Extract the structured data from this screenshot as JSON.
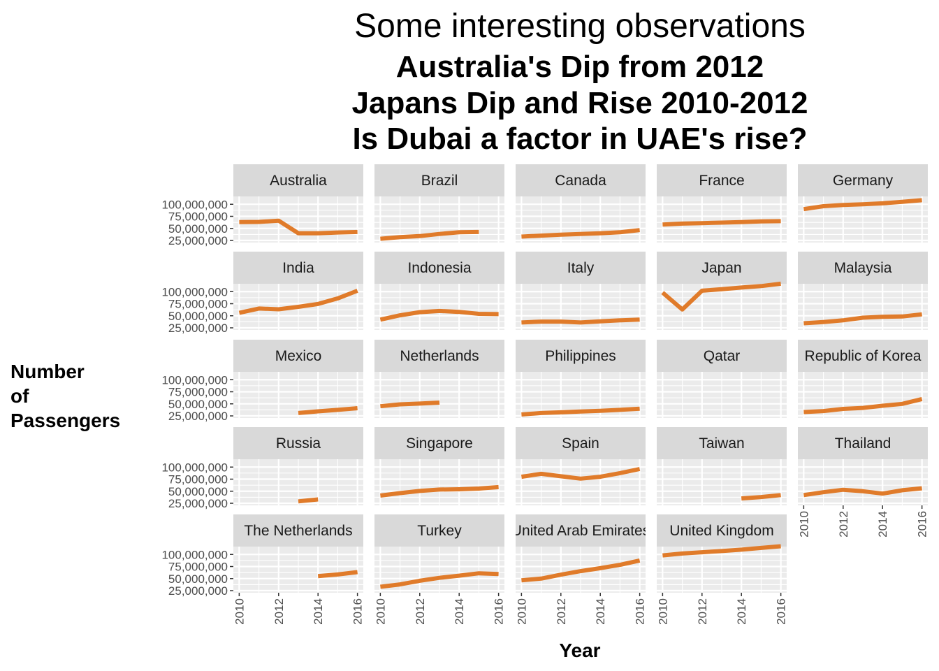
{
  "chart_data": {
    "type": "line",
    "title": "Some interesting observations",
    "subtitle_lines": [
      "Australia's Dip from 2012",
      "Japans Dip and Rise 2010-2012",
      "Is Dubai a factor in UAE's rise?"
    ],
    "xlabel": "Year",
    "ylabel_lines": [
      "Number",
      "of",
      "Passengers"
    ],
    "x_ticks": [
      2010,
      2012,
      2014,
      2016
    ],
    "x_tick_labels": [
      "2010",
      "2012",
      "2014",
      "2016"
    ],
    "xlim": [
      2010,
      2016
    ],
    "y_ticks": [
      25000000,
      50000000,
      75000000,
      100000000
    ],
    "y_tick_labels": [
      "25,000,000",
      "50,000,000",
      "75,000,000",
      "100,000,000"
    ],
    "ylim": [
      25000000,
      112000000
    ],
    "line_color": "#e07b2a",
    "layout": "facet-wrap 5x5",
    "panels": [
      {
        "name": "Australia",
        "x": [
          2010,
          2011,
          2012,
          2013,
          2014,
          2015,
          2016
        ],
        "y": [
          63000000,
          63500000,
          66000000,
          40000000,
          40000000,
          41500000,
          42500000
        ]
      },
      {
        "name": "Brazil",
        "x": [
          2010,
          2011,
          2012,
          2013,
          2014,
          2015
        ],
        "y": [
          28500000,
          32000000,
          34000000,
          38500000,
          42000000,
          42500000
        ]
      },
      {
        "name": "Canada",
        "x": [
          2010,
          2011,
          2012,
          2013,
          2014,
          2015,
          2016
        ],
        "y": [
          33000000,
          35000000,
          37000000,
          38500000,
          40000000,
          42000000,
          46500000
        ]
      },
      {
        "name": "France",
        "x": [
          2010,
          2011,
          2012,
          2013,
          2014,
          2015,
          2016
        ],
        "y": [
          58000000,
          60000000,
          61000000,
          62000000,
          63000000,
          64500000,
          65000000
        ]
      },
      {
        "name": "Germany",
        "x": [
          2010,
          2011,
          2012,
          2013,
          2014,
          2015,
          2016
        ],
        "y": [
          90000000,
          96000000,
          98500000,
          100000000,
          102000000,
          105000000,
          108500000
        ]
      },
      {
        "name": "India",
        "x": [
          2010,
          2011,
          2012,
          2013,
          2014,
          2015,
          2016
        ],
        "y": [
          56000000,
          65000000,
          63500000,
          68500000,
          74500000,
          86000000,
          102000000
        ]
      },
      {
        "name": "Indonesia",
        "x": [
          2010,
          2011,
          2012,
          2013,
          2014,
          2015,
          2016
        ],
        "y": [
          42000000,
          51000000,
          57500000,
          60000000,
          58000000,
          54000000,
          53500000
        ]
      },
      {
        "name": "Italy",
        "x": [
          2010,
          2011,
          2012,
          2013,
          2014,
          2015,
          2016
        ],
        "y": [
          36000000,
          38000000,
          38000000,
          36000000,
          38500000,
          40500000,
          42000000
        ]
      },
      {
        "name": "Japan",
        "x": [
          2010,
          2011,
          2012,
          2013,
          2014,
          2015,
          2016
        ],
        "y": [
          98000000,
          63000000,
          102000000,
          105000000,
          108500000,
          111500000,
          116500000
        ]
      },
      {
        "name": "Malaysia",
        "x": [
          2010,
          2011,
          2012,
          2013,
          2014,
          2015,
          2016
        ],
        "y": [
          34500000,
          37000000,
          40500000,
          46000000,
          48000000,
          48500000,
          53000000
        ]
      },
      {
        "name": "Mexico",
        "x": [
          2013,
          2014,
          2015,
          2016
        ],
        "y": [
          31000000,
          34500000,
          37500000,
          41000000
        ]
      },
      {
        "name": "Netherlands",
        "x": [
          2010,
          2011,
          2012,
          2013
        ],
        "y": [
          45000000,
          49000000,
          50500000,
          52500000
        ]
      },
      {
        "name": "Philippines",
        "x": [
          2010,
          2011,
          2012,
          2013,
          2014,
          2015,
          2016
        ],
        "y": [
          28000000,
          31000000,
          32500000,
          34000000,
          35500000,
          37500000,
          40000000
        ]
      },
      {
        "name": "Qatar",
        "x": [],
        "y": []
      },
      {
        "name": "Republic of Korea",
        "x": [
          2010,
          2011,
          2012,
          2013,
          2014,
          2015,
          2016
        ],
        "y": [
          33000000,
          35000000,
          39500000,
          41500000,
          46000000,
          50000000,
          60000000
        ]
      },
      {
        "name": "Russia",
        "x": [
          2013,
          2014
        ],
        "y": [
          29000000,
          33000000
        ]
      },
      {
        "name": "Singapore",
        "x": [
          2010,
          2011,
          2012,
          2013,
          2014,
          2015,
          2016
        ],
        "y": [
          41000000,
          46000000,
          50500000,
          53500000,
          54000000,
          55500000,
          58500000
        ]
      },
      {
        "name": "Spain",
        "x": [
          2010,
          2011,
          2012,
          2013,
          2014,
          2015,
          2016
        ],
        "y": [
          80000000,
          86000000,
          81000000,
          76000000,
          80000000,
          87500000,
          96000000
        ]
      },
      {
        "name": "Taiwan",
        "x": [
          2014,
          2015,
          2016
        ],
        "y": [
          35000000,
          38000000,
          42000000
        ]
      },
      {
        "name": "Thailand",
        "x": [
          2010,
          2011,
          2012,
          2013,
          2014,
          2015,
          2016
        ],
        "y": [
          42000000,
          48000000,
          53000000,
          50000000,
          45000000,
          52000000,
          56000000
        ]
      },
      {
        "name": "The Netherlands",
        "x": [
          2014,
          2015,
          2016
        ],
        "y": [
          55000000,
          58500000,
          63500000
        ]
      },
      {
        "name": "Turkey",
        "x": [
          2010,
          2011,
          2012,
          2013,
          2014,
          2015,
          2016
        ],
        "y": [
          33000000,
          38000000,
          45500000,
          51500000,
          56000000,
          61000000,
          59500000
        ]
      },
      {
        "name": "United Arab Emirates",
        "x": [
          2010,
          2011,
          2012,
          2013,
          2014,
          2015,
          2016
        ],
        "y": [
          46500000,
          50000000,
          58000000,
          65500000,
          71500000,
          78500000,
          87500000
        ]
      },
      {
        "name": "United Kingdom",
        "x": [
          2010,
          2011,
          2012,
          2013,
          2014,
          2015,
          2016
        ],
        "y": [
          98000000,
          102000000,
          104500000,
          107000000,
          110000000,
          113500000,
          117000000
        ]
      }
    ]
  }
}
